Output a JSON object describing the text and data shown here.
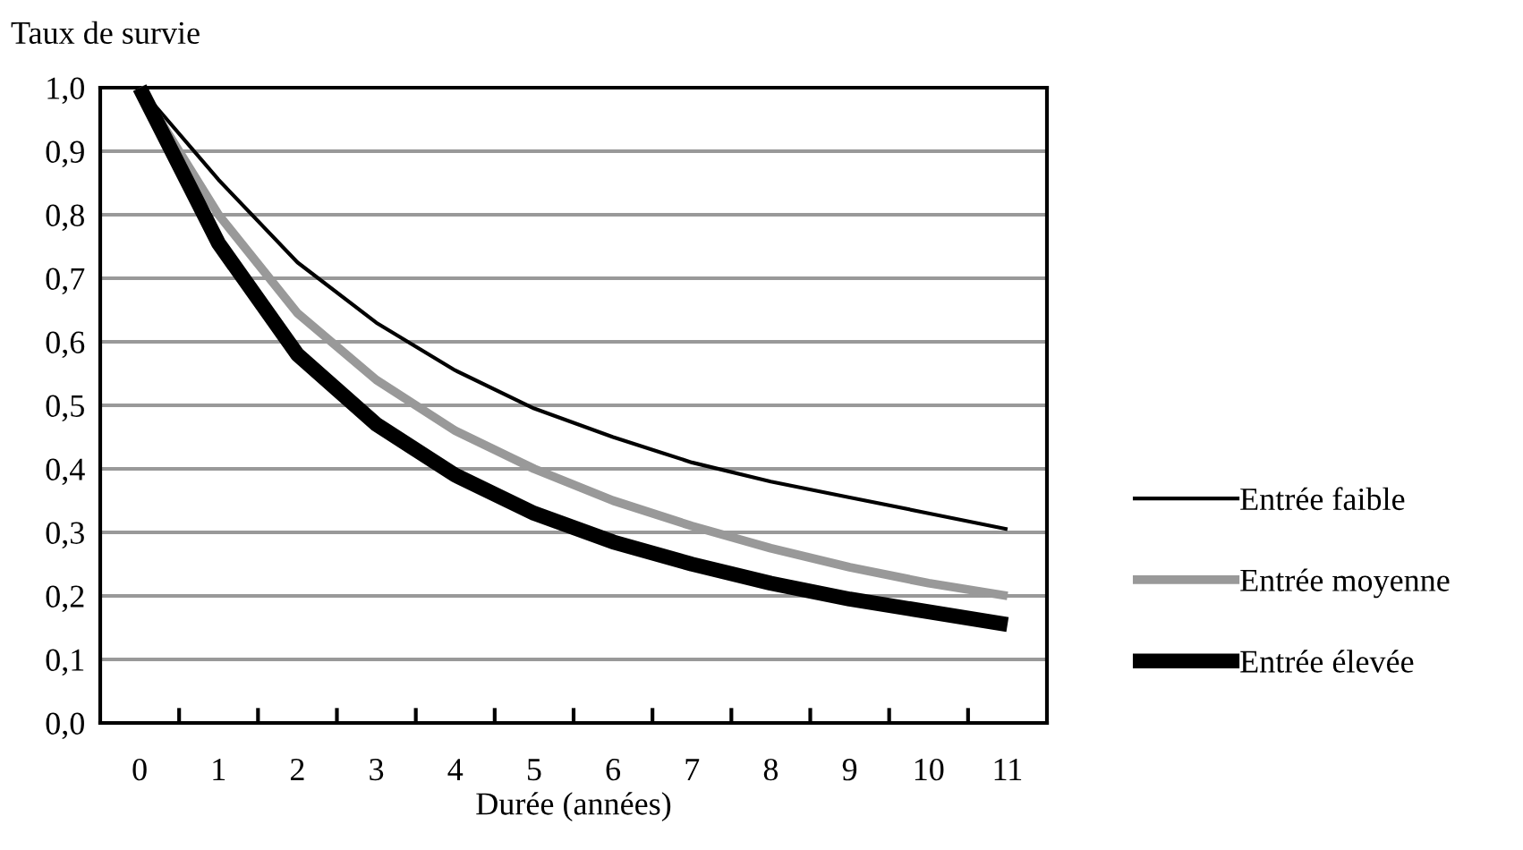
{
  "chart_data": {
    "type": "line",
    "ylabel": "Taux de survie",
    "xlabel": "Durée (années)",
    "categories": [
      "0",
      "1",
      "2",
      "3",
      "4",
      "5",
      "6",
      "7",
      "8",
      "9",
      "10",
      "11"
    ],
    "series": [
      {
        "name": "Entrée faible",
        "color": "#000000",
        "values": [
          1.0,
          0.855,
          0.725,
          0.63,
          0.555,
          0.495,
          0.45,
          0.41,
          0.38,
          0.355,
          0.33,
          0.305
        ]
      },
      {
        "name": "Entrée moyenne",
        "color": "#999999",
        "values": [
          1.0,
          0.8,
          0.645,
          0.54,
          0.46,
          0.4,
          0.35,
          0.31,
          0.275,
          0.245,
          0.22,
          0.2
        ]
      },
      {
        "name": "Entrée élevée",
        "color": "#000000",
        "values": [
          1.0,
          0.755,
          0.58,
          0.47,
          0.39,
          0.33,
          0.285,
          0.25,
          0.22,
          0.195,
          0.175,
          0.155
        ]
      }
    ],
    "ylim": [
      0,
      1
    ],
    "yticks": [
      {
        "value": 0,
        "label": "0,0"
      },
      {
        "value": 0.1,
        "label": "0,1"
      },
      {
        "value": 0.2,
        "label": "0,2"
      },
      {
        "value": 0.3,
        "label": "0,3"
      },
      {
        "value": 0.4,
        "label": "0,4"
      },
      {
        "value": 0.5,
        "label": "0,5"
      },
      {
        "value": 0.6,
        "label": "0,6"
      },
      {
        "value": 0.7,
        "label": "0,7"
      },
      {
        "value": 0.8,
        "label": "0,8"
      },
      {
        "value": 0.9,
        "label": "0,9"
      },
      {
        "value": 1,
        "label": "1,0"
      }
    ],
    "grid": "y",
    "legend": "right",
    "marker": "none",
    "line_style": "solid"
  }
}
